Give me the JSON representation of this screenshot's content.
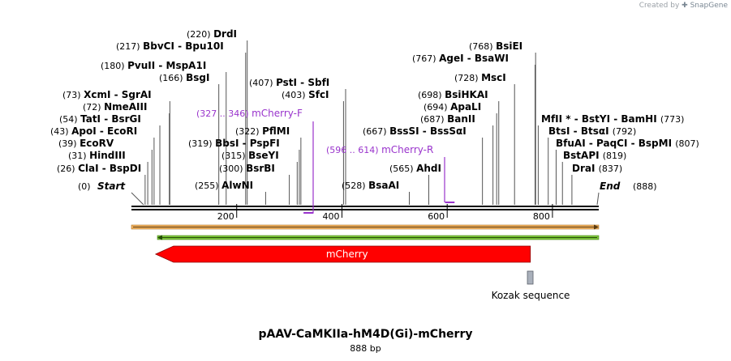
{
  "watermark": {
    "prefix": "Created by",
    "brand": "SnapGene"
  },
  "map": {
    "title": "pAAV-CaMKIIa-hM4D(Gi)-mCherry",
    "length_label": "888 bp",
    "length": 888,
    "start": {
      "pos_label": "(0)",
      "name": "Start"
    },
    "end": {
      "pos_label": "(888)",
      "name": "End"
    },
    "ticks": [
      {
        "pos": 200,
        "label": "200"
      },
      {
        "pos": 400,
        "label": "400"
      },
      {
        "pos": 600,
        "label": "600"
      },
      {
        "pos": 800,
        "label": "800"
      }
    ],
    "sites": [
      {
        "pos": 26,
        "pos_label": "(26)",
        "names": "ClaI  - BspDI"
      },
      {
        "pos": 31,
        "pos_label": "(31)",
        "names": "HindIII"
      },
      {
        "pos": 39,
        "pos_label": "(39)",
        "names": "EcoRV"
      },
      {
        "pos": 43,
        "pos_label": "(43)",
        "names": "ApoI  - EcoRI"
      },
      {
        "pos": 54,
        "pos_label": "(54)",
        "names": "TatI  - BsrGI"
      },
      {
        "pos": 72,
        "pos_label": "(72)",
        "names": "NmeAIII"
      },
      {
        "pos": 73,
        "pos_label": "(73)",
        "names": "XcmI  - SgrAI"
      },
      {
        "pos": 166,
        "pos_label": "(166)",
        "names": "BsgI"
      },
      {
        "pos": 180,
        "pos_label": "(180)",
        "names": "PvuII  - MspA1I"
      },
      {
        "pos": 217,
        "pos_label": "(217)",
        "names": "BbvCI  - Bpu10I"
      },
      {
        "pos": 220,
        "pos_label": "(220)",
        "names": "DrdI"
      },
      {
        "pos": 255,
        "pos_label": "(255)",
        "names": "AlwNI"
      },
      {
        "pos": 300,
        "pos_label": "(300)",
        "names": "BsrBI"
      },
      {
        "pos": 315,
        "pos_label": "(315)",
        "names": "BseYI"
      },
      {
        "pos": 319,
        "pos_label": "(319)",
        "names": "BbsI  - PspFI"
      },
      {
        "pos": 322,
        "pos_label": "(322)",
        "names": "PflMI"
      },
      {
        "pos": 403,
        "pos_label": "(403)",
        "names": "SfcI"
      },
      {
        "pos": 407,
        "pos_label": "(407)",
        "names": "PstI  - SbfI"
      },
      {
        "pos": 528,
        "pos_label": "(528)",
        "names": "BsaAI"
      },
      {
        "pos": 565,
        "pos_label": "(565)",
        "names": "AhdI"
      },
      {
        "pos": 667,
        "pos_label": "(667)",
        "names": "BssSI  - BssSαI"
      },
      {
        "pos": 687,
        "pos_label": "(687)",
        "names": "BanII"
      },
      {
        "pos": 694,
        "pos_label": "(694)",
        "names": "ApaLI"
      },
      {
        "pos": 698,
        "pos_label": "(698)",
        "names": "BsiHKAI"
      },
      {
        "pos": 728,
        "pos_label": "(728)",
        "names": "MscI"
      },
      {
        "pos": 767,
        "pos_label": "(767)",
        "names": "AgeI  - BsaWI"
      },
      {
        "pos": 768,
        "pos_label": "(768)",
        "names": "BsiEI"
      },
      {
        "pos": 773,
        "pos_label": "(773)",
        "names": "MfII *  - BstYI  - BamHI"
      },
      {
        "pos": 792,
        "pos_label": "(792)",
        "names": "BtsI  - BtsαI"
      },
      {
        "pos": 807,
        "pos_label": "(807)",
        "names": "BfuAI  - PaqCI  - BspMI"
      },
      {
        "pos": 819,
        "pos_label": "(819)",
        "names": "BstAPI"
      },
      {
        "pos": 837,
        "pos_label": "(837)",
        "names": "DraI"
      }
    ],
    "primers": [
      {
        "name": "mCherry-F",
        "range": "(327 .. 346)",
        "start": 327,
        "end": 346,
        "direction": "forward"
      },
      {
        "name": "mCherry-R",
        "range": "(596 .. 614)",
        "start": 596,
        "end": 614,
        "direction": "reverse"
      }
    ],
    "features": [
      {
        "name": "mCherry",
        "start": 46,
        "end": 758,
        "direction": "reverse",
        "color": "#ff0000"
      },
      {
        "name": "Kozak sequence",
        "start": 757,
        "end": 767,
        "color": "#a9b0bb"
      }
    ],
    "colors": {
      "primer": "#9933cc",
      "orange_bar": "#f0b060",
      "green_bar": "#7cc23a",
      "backbone": "#000000"
    }
  }
}
